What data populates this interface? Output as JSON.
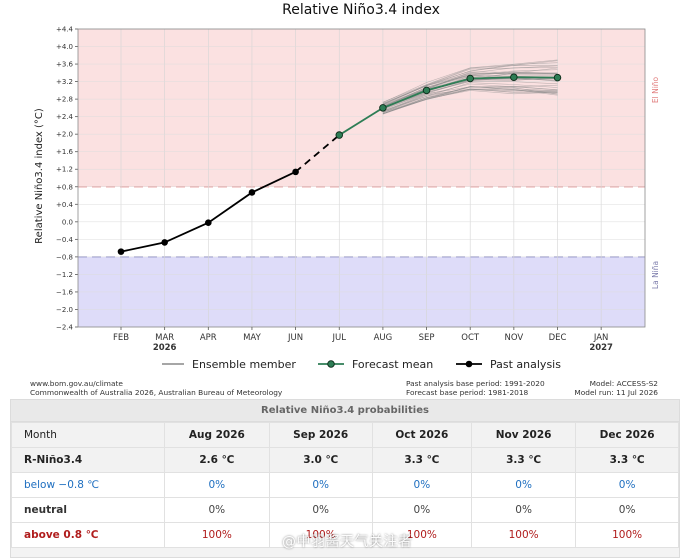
{
  "chart_data": {
    "type": "line",
    "title": "Relative Niño3.4 index",
    "ylabel": "Relative Niño3.4 index (°C)",
    "ylim": [
      -2.4,
      4.4
    ],
    "yticks": [
      "+4.4",
      "+4.0",
      "+3.6",
      "+3.2",
      "+2.8",
      "+2.4",
      "+2.0",
      "+1.6",
      "+1.2",
      "+0.8",
      "+0.4",
      "0.0",
      "−0.4",
      "−0.8",
      "−1.2",
      "−1.6",
      "−2.0",
      "−2.4"
    ],
    "xticks": [
      "FEB",
      "MAR",
      "APR",
      "MAY",
      "JUN",
      "JUL",
      "AUG",
      "SEP",
      "OCT",
      "NOV",
      "DEC",
      "JAN"
    ],
    "year_labels": [
      {
        "at": "MAR",
        "text": "2026"
      },
      {
        "at": "JAN",
        "text": "2027"
      }
    ],
    "thresholds": {
      "el_nino": 0.8,
      "la_nina": -0.8
    },
    "zone_labels": {
      "el_nino": "El Niño",
      "la_nina": "La Niña"
    },
    "past_analysis": {
      "name": "Past analysis",
      "x": [
        "FEB",
        "MAR",
        "APR",
        "MAY",
        "JUN"
      ],
      "y": [
        -0.68,
        -0.47,
        -0.02,
        0.67,
        1.14
      ]
    },
    "forecast_mean": {
      "name": "Forecast mean",
      "x": [
        "JUL",
        "AUG",
        "SEP",
        "OCT",
        "NOV",
        "DEC"
      ],
      "y": [
        1.98,
        2.6,
        3.0,
        3.27,
        3.3,
        3.29
      ]
    },
    "ensemble": {
      "name": "Ensemble member",
      "spread_at_dec": [
        2.9,
        3.7
      ]
    },
    "legend": [
      "Ensemble member",
      "Forecast mean",
      "Past analysis"
    ],
    "colors": {
      "el_nino_zone": "#fbe1e1",
      "la_nina_zone": "#dedcf9",
      "forecast": "#2e7d55",
      "ensemble": "#8a8a8a",
      "past": "#000000"
    }
  },
  "footer": {
    "left1": "www.bom.gov.au/climate",
    "left2": "Commonwealth of Australia 2026, Australian Bureau of Meteorology",
    "mid1": "Past analysis base period: 1991-2020",
    "mid2": "Forecast base period: 1981-2018",
    "right1": "Model: ACCESS-S2",
    "right2": "Model run: 11 Jul 2026"
  },
  "probabilities": {
    "title": "Relative Niño3.4 probabilities",
    "header_label": "Month",
    "months": [
      "Aug 2026",
      "Sep 2026",
      "Oct 2026",
      "Nov 2026",
      "Dec 2026"
    ],
    "rows": [
      {
        "label": "R-Niño3.4",
        "values": [
          "2.6 ℃",
          "3.0 ℃",
          "3.3 ℃",
          "3.3 ℃",
          "3.3 ℃"
        ]
      },
      {
        "label": "below −0.8 ℃",
        "values": [
          "0%",
          "0%",
          "0%",
          "0%",
          "0%"
        ]
      },
      {
        "label": "neutral",
        "values": [
          "0%",
          "0%",
          "0%",
          "0%",
          "0%"
        ]
      },
      {
        "label": "above 0.8 ℃",
        "values": [
          "100%",
          "100%",
          "100%",
          "100%",
          "100%"
        ]
      }
    ]
  },
  "watermark": "@中羽酱天气关注者"
}
